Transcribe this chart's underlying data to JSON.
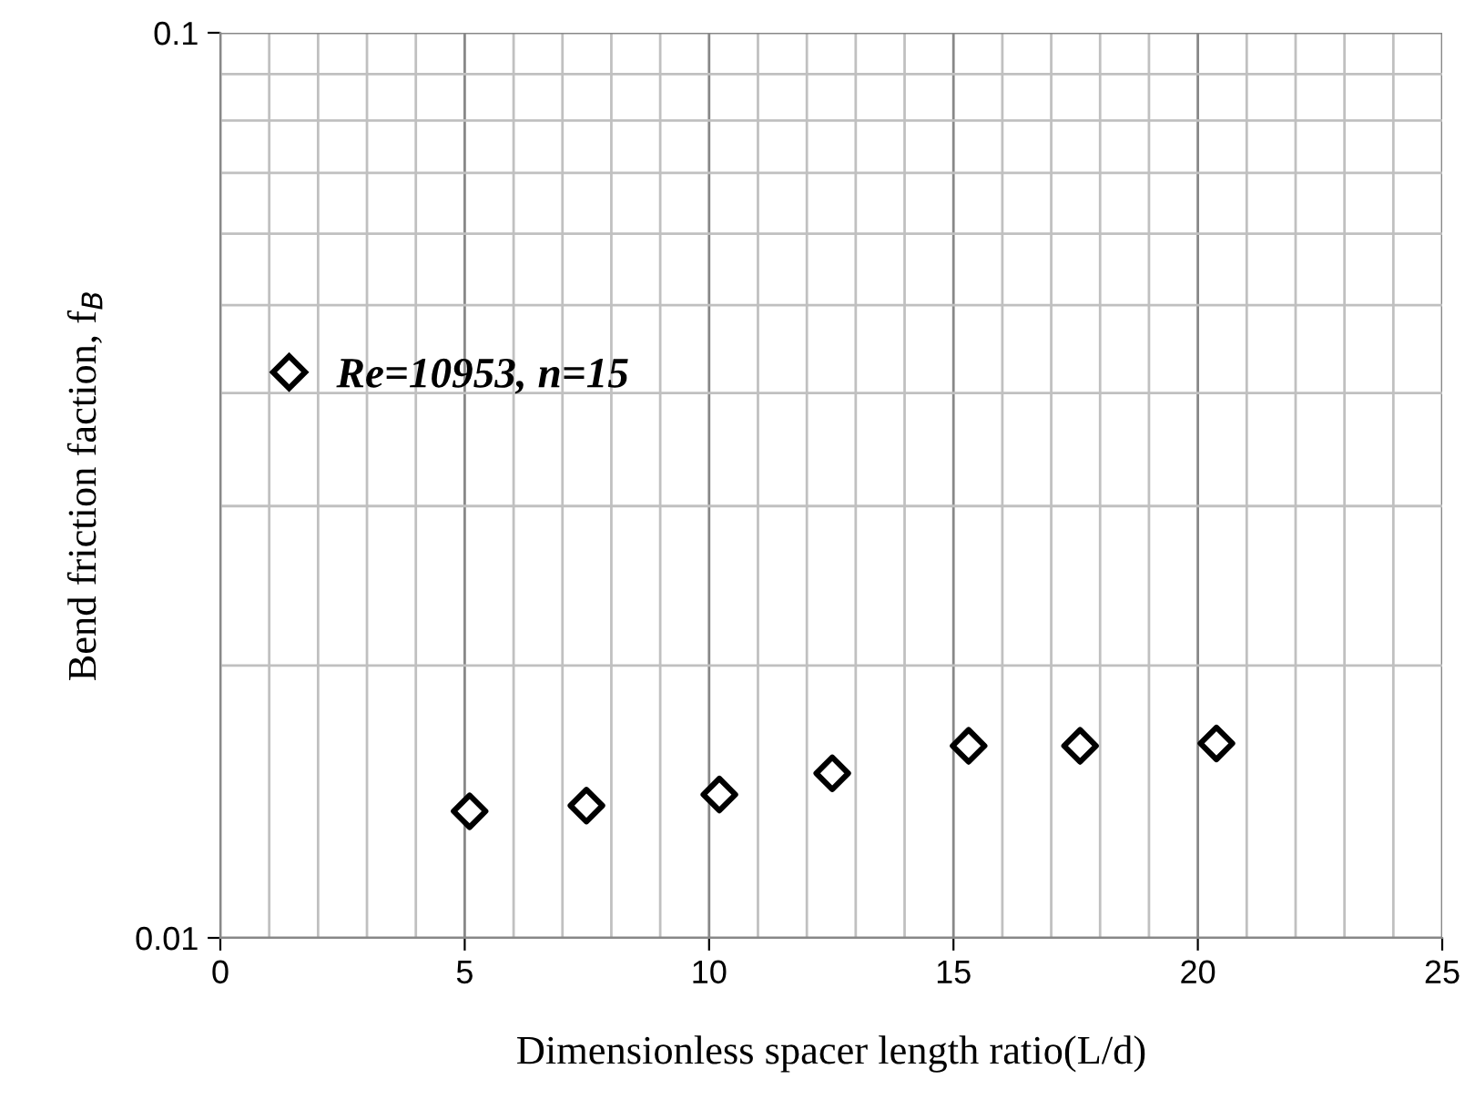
{
  "chart_data": {
    "type": "scatter",
    "xlabel": "Dimensionless spacer length ratio(L/d)",
    "ylabel": "Bend friction faction, f$_{B}$",
    "series": [
      {
        "name": "Re=10953, n=15",
        "color": "#000000",
        "x": [
          5.1,
          7.49,
          10.21,
          12.52,
          15.31,
          17.59,
          20.38
        ],
        "values": [
          0.0138,
          0.014,
          0.0144,
          0.0152,
          0.0163,
          0.0163,
          0.0164
        ]
      }
    ],
    "xlim": [
      0,
      25
    ],
    "xticks": [
      0,
      5,
      10,
      15,
      20,
      25
    ],
    "ylim": [
      0.01,
      0.1
    ],
    "yticks": [
      0.01,
      0.1
    ],
    "log": "y",
    "grid": true,
    "legend": "center left",
    "marker": "diamond"
  }
}
